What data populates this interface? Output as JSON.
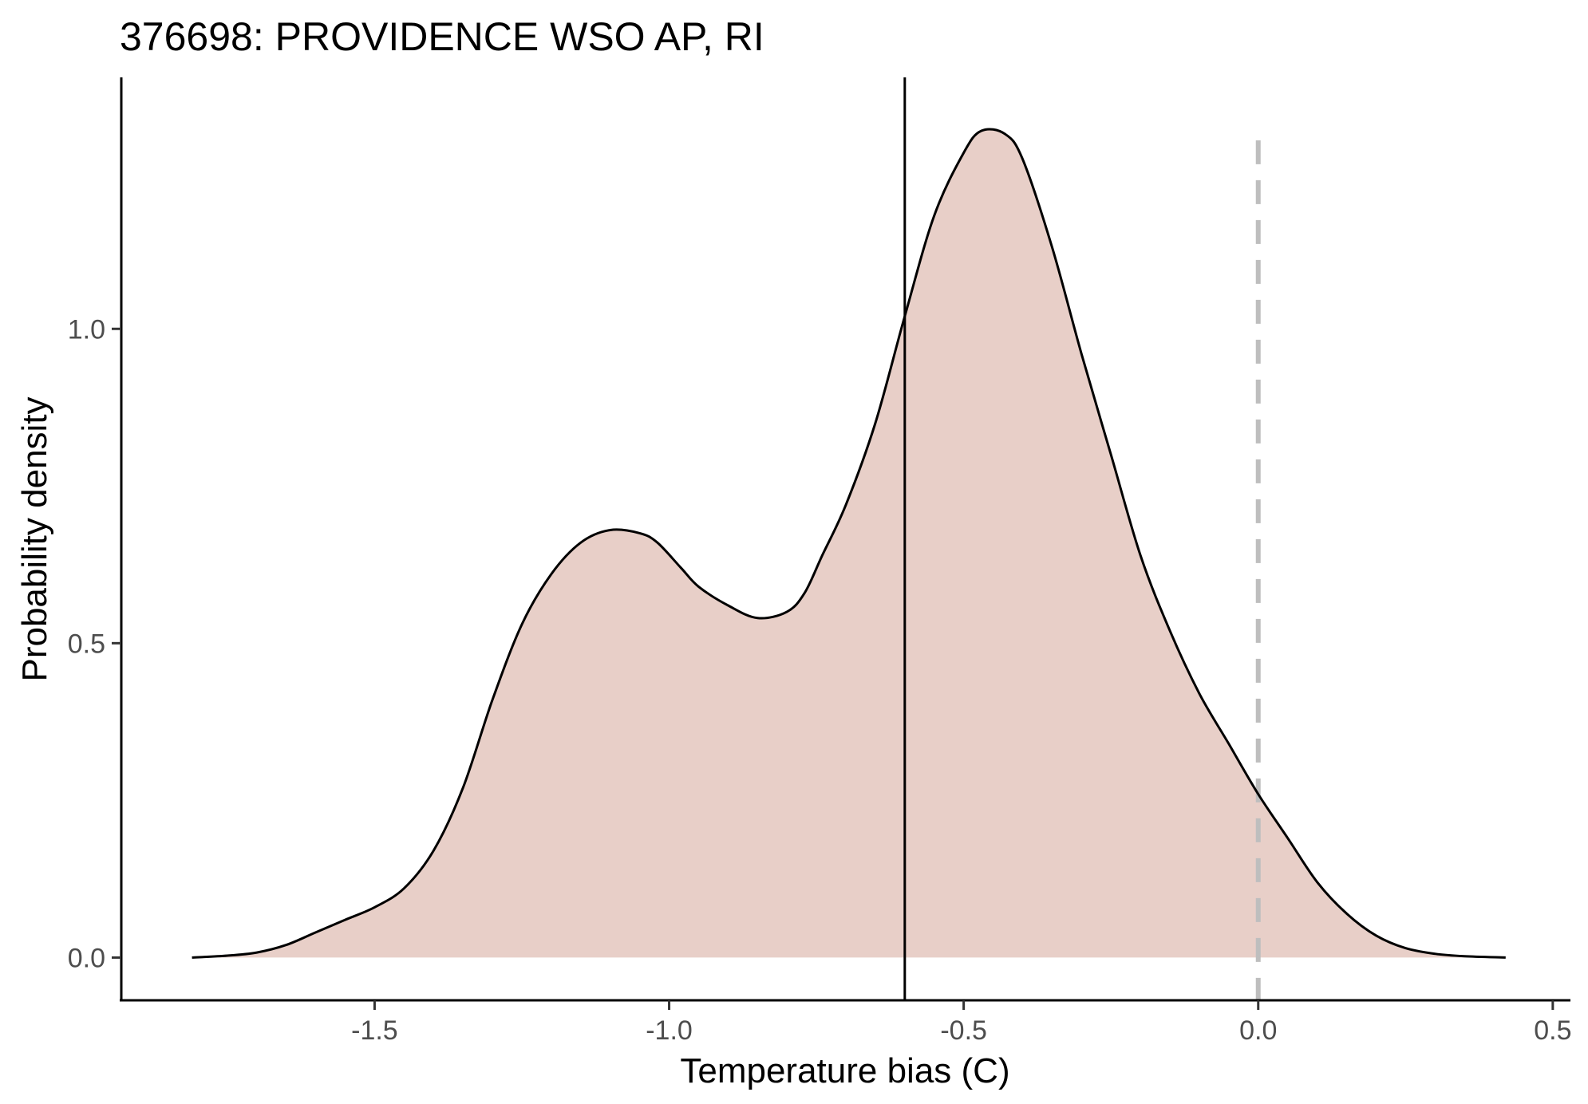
{
  "chart_data": {
    "type": "area",
    "title": "376698: PROVIDENCE WSO AP, RI",
    "xlabel": "Temperature bias (C)",
    "ylabel": "Probability density",
    "xlim": [
      -1.93,
      0.53
    ],
    "ylim": [
      -0.068,
      1.4
    ],
    "x_ticks": [
      -1.5,
      -1.0,
      -0.5,
      0.0,
      0.5
    ],
    "x_tick_labels": [
      "-1.5",
      "-1.0",
      "-0.5",
      "0.0",
      "0.5"
    ],
    "y_ticks": [
      0.0,
      0.5,
      1.0
    ],
    "y_tick_labels": [
      "0.0",
      "0.5",
      "1.0"
    ],
    "grid": false,
    "fill_color": "#e8cfc8",
    "line_color": "#000000",
    "density": {
      "x": [
        -1.81,
        -1.75,
        -1.7,
        -1.65,
        -1.6,
        -1.55,
        -1.5,
        -1.45,
        -1.4,
        -1.35,
        -1.3,
        -1.25,
        -1.2,
        -1.15,
        -1.1,
        -1.05,
        -1.02,
        -0.98,
        -0.95,
        -0.9,
        -0.85,
        -0.8,
        -0.77,
        -0.74,
        -0.7,
        -0.65,
        -0.6,
        -0.55,
        -0.5,
        -0.47,
        -0.43,
        -0.4,
        -0.35,
        -0.3,
        -0.25,
        -0.2,
        -0.15,
        -0.1,
        -0.05,
        0.0,
        0.05,
        0.1,
        0.15,
        0.2,
        0.25,
        0.3,
        0.35,
        0.42
      ],
      "y": [
        0.0,
        0.003,
        0.008,
        0.02,
        0.04,
        0.06,
        0.08,
        0.11,
        0.17,
        0.27,
        0.41,
        0.53,
        0.61,
        0.66,
        0.68,
        0.675,
        0.66,
        0.62,
        0.59,
        0.56,
        0.54,
        0.55,
        0.58,
        0.64,
        0.72,
        0.85,
        1.02,
        1.18,
        1.28,
        1.315,
        1.31,
        1.27,
        1.13,
        0.96,
        0.8,
        0.64,
        0.52,
        0.42,
        0.34,
        0.26,
        0.19,
        0.12,
        0.07,
        0.035,
        0.015,
        0.006,
        0.002,
        0.0
      ]
    },
    "reference_lines": [
      {
        "x": -0.6,
        "style": "solid",
        "color": "#000000"
      },
      {
        "x": 0.0,
        "style": "dashed",
        "color": "#bebebe"
      }
    ]
  }
}
